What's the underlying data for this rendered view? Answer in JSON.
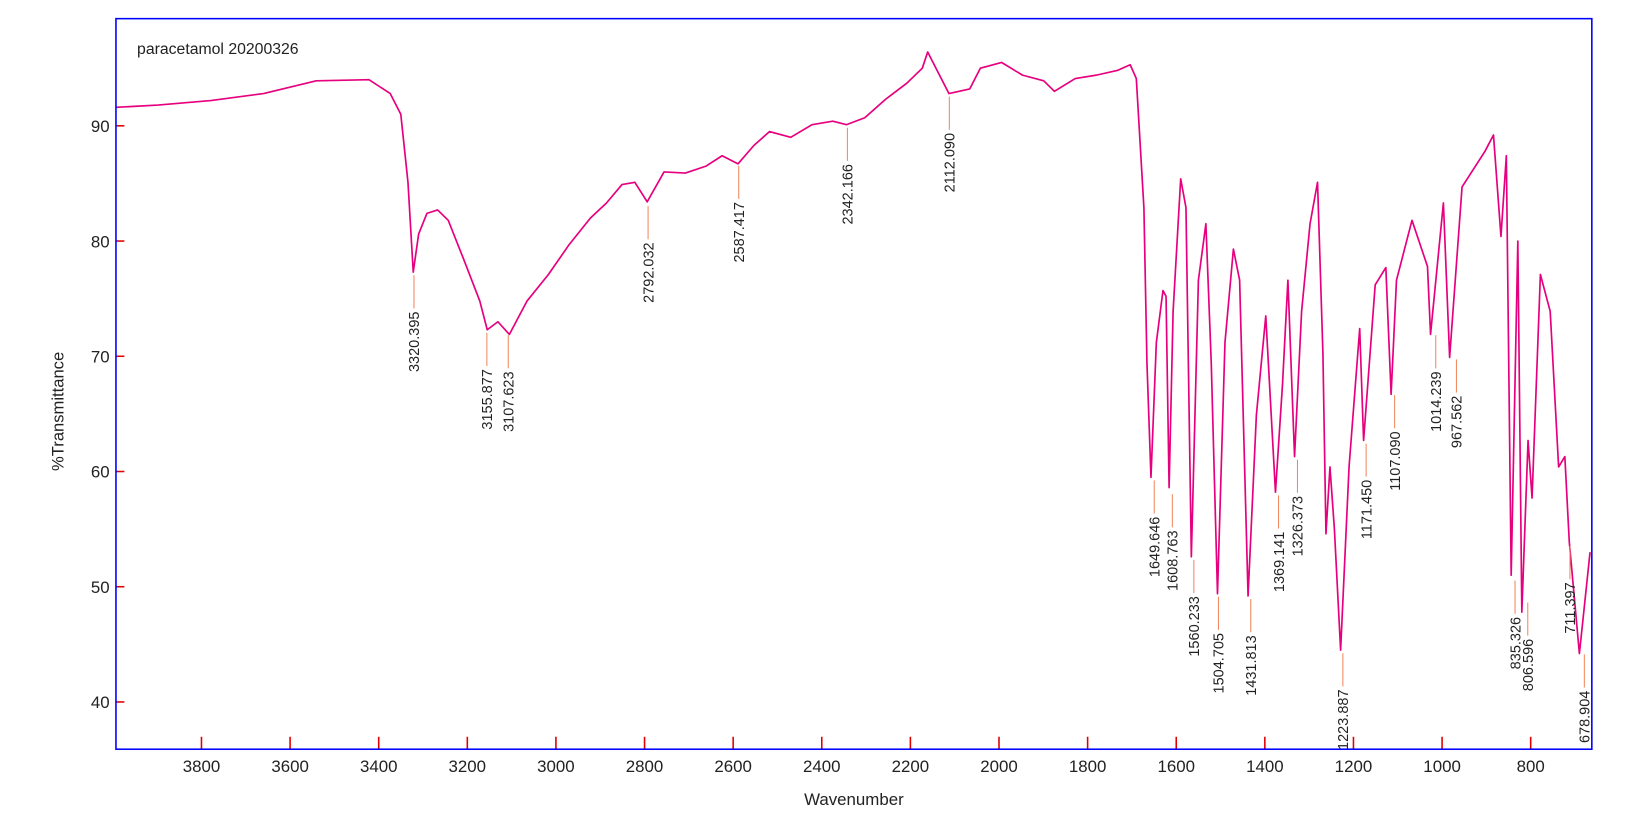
{
  "chart_data": {
    "type": "line",
    "title": "paracetamol 20200326",
    "xlabel": "Wavenumber",
    "ylabel": "%Transmittance",
    "xlim": [
      3993,
      662
    ],
    "ylim": [
      35.9,
      99.3
    ],
    "xticks": [
      3800,
      3600,
      3400,
      3200,
      3000,
      2800,
      2600,
      2400,
      2200,
      2000,
      1800,
      1600,
      1400,
      1200,
      1000,
      800
    ],
    "yticks": [
      40,
      50,
      60,
      70,
      80,
      90
    ],
    "color": "#e6007e",
    "x": [
      3993,
      3898,
      3779,
      3660,
      3541,
      3422,
      3374,
      3350,
      3334,
      3322,
      3310,
      3291,
      3267,
      3243,
      3208,
      3172,
      3155,
      3131,
      3105,
      3065,
      3017,
      2970,
      2922,
      2886,
      2851,
      2822,
      2794,
      2756,
      2708,
      2661,
      2625,
      2589,
      2553,
      2518,
      2470,
      2422,
      2375,
      2344,
      2303,
      2256,
      2208,
      2173,
      2161,
      2137,
      2113,
      2066,
      2042,
      1994,
      1947,
      1899,
      1875,
      1828,
      1780,
      1733,
      1704,
      1690,
      1673,
      1666,
      1657,
      1645,
      1630,
      1623,
      1616,
      1607,
      1590,
      1578,
      1566,
      1550,
      1533,
      1521,
      1507,
      1490,
      1471,
      1457,
      1438,
      1419,
      1398,
      1376,
      1360,
      1348,
      1333,
      1317,
      1298,
      1281,
      1269,
      1262,
      1253,
      1243,
      1229,
      1210,
      1186,
      1177,
      1151,
      1127,
      1115,
      1103,
      1068,
      1033,
      1026,
      997,
      983,
      955,
      903,
      884,
      867,
      855,
      844,
      829,
      820,
      806,
      797,
      778,
      756,
      737,
      723,
      713,
      690,
      666
    ],
    "values": [
      91.6,
      91.8,
      92.2,
      92.8,
      93.9,
      94.0,
      92.8,
      91.0,
      85.1,
      77.3,
      80.6,
      82.4,
      82.7,
      81.8,
      78.4,
      74.8,
      72.3,
      73.0,
      71.9,
      74.8,
      77.1,
      79.7,
      82.0,
      83.3,
      84.9,
      85.1,
      83.4,
      86.0,
      85.9,
      86.5,
      87.4,
      86.7,
      88.3,
      89.5,
      89.0,
      90.1,
      90.4,
      90.1,
      90.7,
      92.3,
      93.7,
      95.0,
      96.4,
      94.6,
      92.8,
      93.2,
      95.0,
      95.5,
      94.4,
      93.9,
      93.0,
      94.1,
      94.4,
      94.8,
      95.3,
      94.1,
      82.9,
      69.4,
      59.5,
      71.2,
      75.7,
      75.2,
      58.6,
      73.9,
      85.4,
      82.9,
      52.6,
      76.6,
      81.5,
      69.4,
      49.4,
      71.2,
      79.3,
      76.6,
      49.2,
      64.9,
      73.5,
      58.2,
      67.6,
      76.6,
      61.3,
      73.9,
      81.5,
      85.1,
      70.3,
      54.6,
      60.4,
      55.0,
      44.5,
      60.4,
      72.4,
      62.7,
      76.2,
      77.7,
      66.7,
      76.6,
      81.8,
      77.8,
      71.9,
      83.3,
      69.9,
      84.7,
      87.8,
      89.2,
      80.4,
      87.4,
      51.0,
      80.0,
      47.8,
      62.7,
      57.7,
      77.1,
      73.9,
      60.4,
      61.3,
      53.9,
      44.2,
      53.0
    ],
    "annotations": [
      {
        "x": 3320.395,
        "y": 77.3,
        "label": "3320.395"
      },
      {
        "x": 3155.877,
        "y": 72.3,
        "label": "3155.877"
      },
      {
        "x": 3107.623,
        "y": 72.1,
        "label": "3107.623"
      },
      {
        "x": 2792.032,
        "y": 83.3,
        "label": "2792.032"
      },
      {
        "x": 2587.417,
        "y": 86.8,
        "label": "2587.417"
      },
      {
        "x": 2342.166,
        "y": 90.1,
        "label": "2342.166"
      },
      {
        "x": 2112.09,
        "y": 92.8,
        "label": "2112.090"
      },
      {
        "x": 1649.646,
        "y": 59.5,
        "label": "1649.646"
      },
      {
        "x": 1608.763,
        "y": 58.3,
        "label": "1608.763"
      },
      {
        "x": 1560.233,
        "y": 52.6,
        "label": "1560.233"
      },
      {
        "x": 1504.705,
        "y": 49.4,
        "label": "1504.705"
      },
      {
        "x": 1431.813,
        "y": 49.2,
        "label": "1431.813"
      },
      {
        "x": 1369.141,
        "y": 58.2,
        "label": "1369.141"
      },
      {
        "x": 1326.373,
        "y": 61.3,
        "label": "1326.373"
      },
      {
        "x": 1223.887,
        "y": 44.5,
        "label": "1223.887"
      },
      {
        "x": 1171.45,
        "y": 62.7,
        "label": "1171.450"
      },
      {
        "x": 1107.09,
        "y": 66.9,
        "label": "1107.090"
      },
      {
        "x": 1014.239,
        "y": 72.1,
        "label": "1014.239"
      },
      {
        "x": 967.562,
        "y": 70.0,
        "label": "967.562"
      },
      {
        "x": 835.326,
        "y": 50.8,
        "label": "835.326"
      },
      {
        "x": 806.596,
        "y": 48.9,
        "label": "806.596"
      },
      {
        "x": 711.397,
        "y": 53.8,
        "label": "711.397"
      },
      {
        "x": 678.904,
        "y": 44.4,
        "label": "678.904"
      }
    ]
  }
}
